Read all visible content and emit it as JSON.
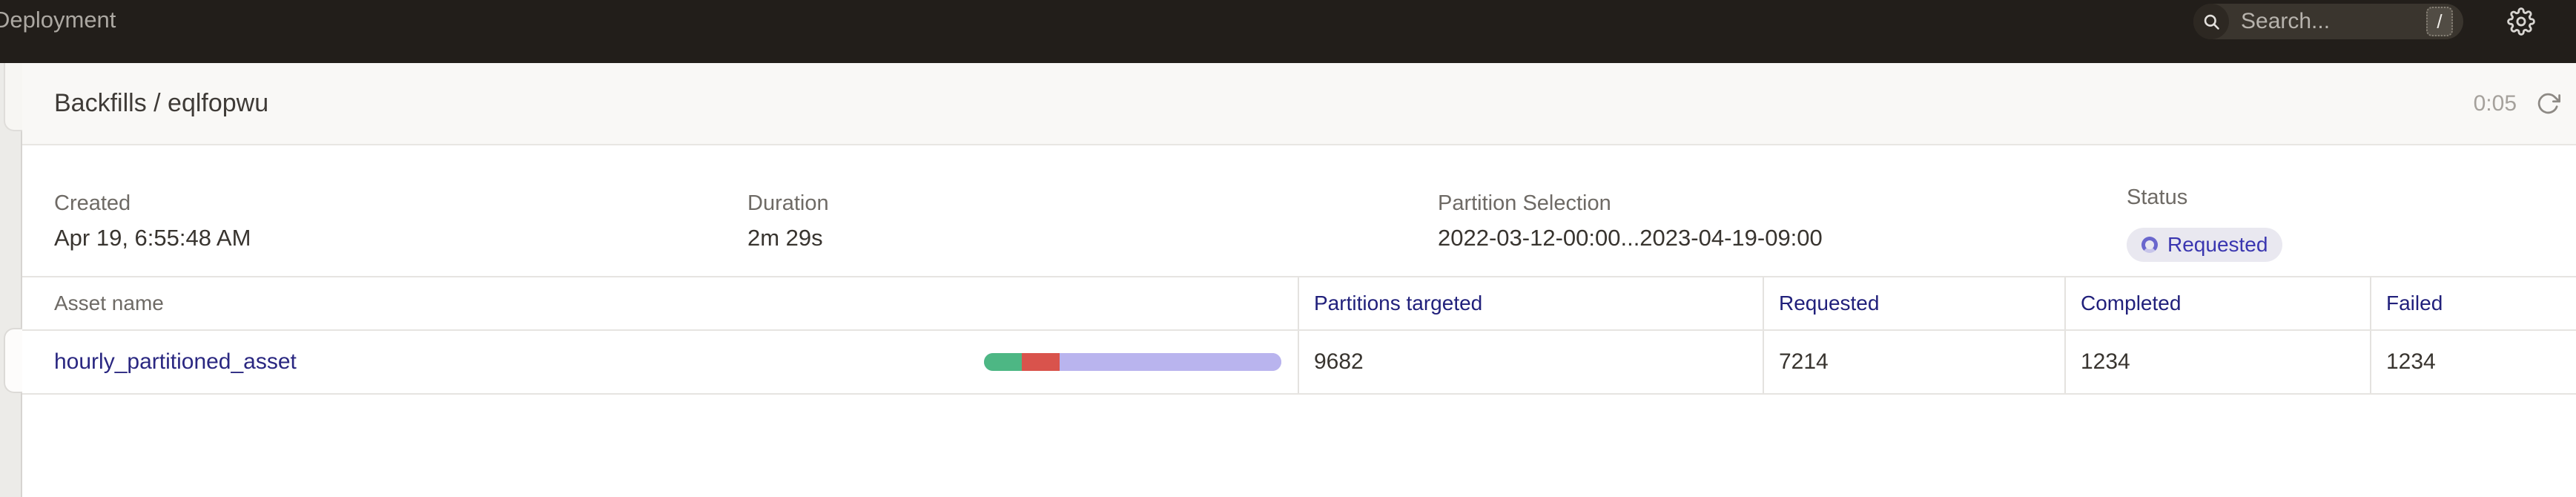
{
  "topbar": {
    "deployment_label": "Deployment",
    "search": {
      "placeholder": "Search...",
      "shortcut": "/"
    }
  },
  "header": {
    "title": "Backfills / eqlfopwu",
    "timer": "0:05"
  },
  "meta": {
    "created": {
      "label": "Created",
      "value": "Apr 19, 6:55:48 AM"
    },
    "duration": {
      "label": "Duration",
      "value": "2m 29s"
    },
    "partition_selection": {
      "label": "Partition Selection",
      "value": "2022-03-12-00:00...2023-04-19-09:00"
    },
    "status": {
      "label": "Status",
      "value": "Requested"
    }
  },
  "table": {
    "columns": [
      "Asset name",
      "Partitions targeted",
      "Requested",
      "Completed",
      "Failed"
    ],
    "rows": [
      {
        "asset_name": "hourly_partitioned_asset",
        "partitions_targeted": "9682",
        "requested": "7214",
        "completed": "1234",
        "failed": "1234",
        "progress": {
          "completed_pct": 12.7,
          "failed_pct": 12.7,
          "in_progress_pct": 74.6
        }
      }
    ]
  },
  "colors": {
    "topbar_bg": "#221E1A",
    "accent_navy": "#21207B",
    "link": "#2A2781",
    "status_text": "#3A36B0",
    "status_badge_bg": "#E9E8F0",
    "progress_completed": "#4DB784",
    "progress_failed": "#D9534C",
    "progress_in_progress": "#B9B4EE"
  }
}
